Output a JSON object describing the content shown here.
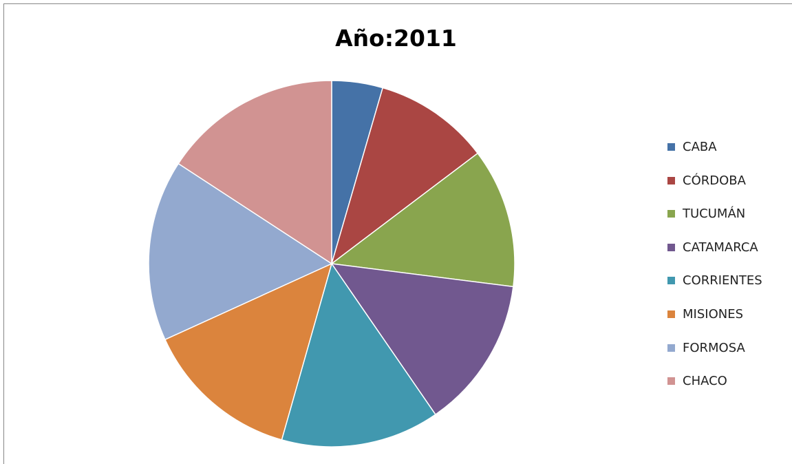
{
  "chart_data": {
    "type": "pie",
    "title": "Año:2011",
    "categories": [
      "CABA",
      "CÓRDOBA",
      "TUCUMÁN",
      "CATAMARCA",
      "CORRIENTES",
      "MISIONES",
      "FORMOSA",
      "CHACO"
    ],
    "values": [
      4.5,
      10.2,
      12.3,
      13.4,
      14.0,
      13.8,
      16.0,
      15.8
    ],
    "colors": [
      "#4572A7",
      "#AA4643",
      "#89A54E",
      "#71588F",
      "#4198AF",
      "#DB843D",
      "#93A9CF",
      "#D19392"
    ],
    "legend_position": "right",
    "start_angle": "12 o'clock, clockwise"
  }
}
